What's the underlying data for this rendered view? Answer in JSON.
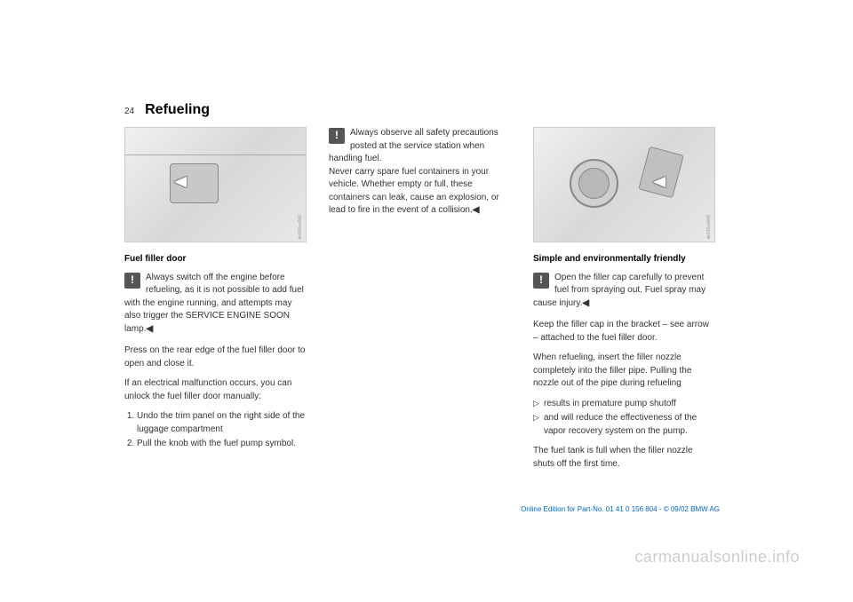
{
  "page_number": "24",
  "page_title": "Refueling",
  "col1": {
    "figure_credit": "de430us006",
    "sub_heading": "Fuel filler door",
    "warn_text": "Always switch off the engine before refueling, as it is not possible to add fuel with the engine running, and attempts may also trigger the SERVICE ENGINE SOON lamp.",
    "end_mark": "◀",
    "para1": "Press on the rear edge of the fuel filler door to open and close it.",
    "para2": "If an electrical malfunction occurs, you can unlock the fuel filler door manually:",
    "list_item1": "Undo the trim panel on the right side of the luggage compartment",
    "list_item2": "Pull the knob with the fuel pump symbol."
  },
  "col2": {
    "warn_text": "Always observe all safety precautions posted at the service station when handling fuel.\nNever carry spare fuel containers in your vehicle. Whether empty or full, these containers can leak, cause an explosion, or lead to fire in the event of a collision.",
    "end_mark": "◀"
  },
  "col3": {
    "figure_credit": "de430us008",
    "sub_heading": "Simple and environmentally friendly",
    "warn_text": "Open the filler cap carefully to prevent fuel from spraying out. Fuel spray may cause injury.",
    "end_mark": "◀",
    "para1": "Keep the filler cap in the bracket – see arrow – attached to the fuel filler door.",
    "para2": "When refueling, insert the filler nozzle completely into the filler pipe. Pulling the nozzle out of the pipe during refueling",
    "bullet1": "results in premature pump shutoff",
    "bullet2": "and will reduce the effectiveness of the vapor recovery system on the pump.",
    "para3": "The fuel tank is full when the filler nozzle shuts off the first time."
  },
  "footer": "Online Edition for Part-No. 01 41 0 156 804 - © 09/02 BMW AG",
  "watermark": "carmanualsonline.info",
  "colors": {
    "text": "#333333",
    "heading": "#000000",
    "footer_link": "#0066cc",
    "watermark": "#cccccc",
    "background": "#ffffff"
  }
}
